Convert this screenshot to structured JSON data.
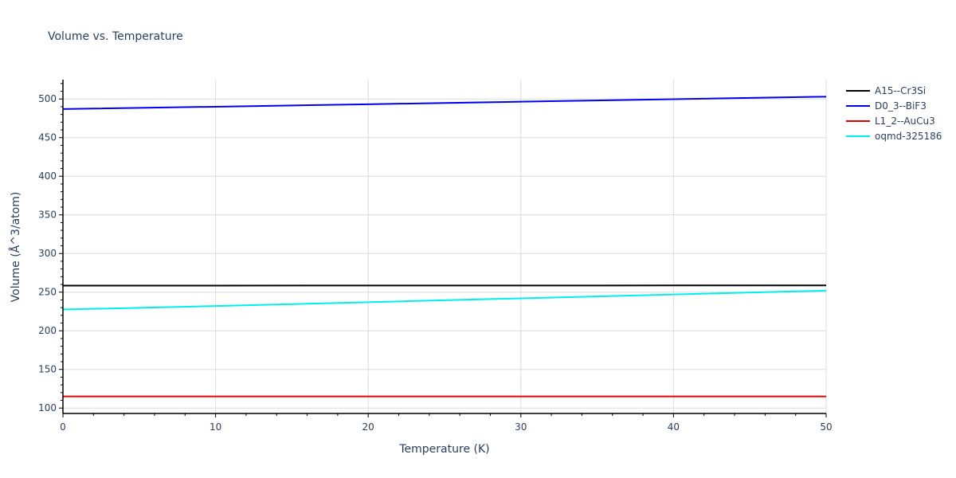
{
  "chart_data": {
    "type": "line",
    "title": "Volume vs. Temperature",
    "xlabel": "Temperature (K)",
    "ylabel": "Volume (Å^3/atom)",
    "xlim": [
      0,
      50
    ],
    "ylim": [
      93,
      525
    ],
    "x_ticks": [
      0,
      10,
      20,
      30,
      40,
      50
    ],
    "y_ticks": [
      100,
      150,
      200,
      250,
      300,
      350,
      400,
      450,
      500
    ],
    "grid": true,
    "legend_position": "right-top",
    "x": [
      0,
      10,
      20,
      30,
      40,
      50
    ],
    "series": [
      {
        "name": "A15--Cr3Si",
        "color": "#000000",
        "values": [
          258.5,
          258.5,
          258.6,
          258.6,
          258.7,
          258.8
        ]
      },
      {
        "name": "D0_3--BiF3",
        "color": "#0000ee",
        "values": [
          487.0,
          490.0,
          493.2,
          496.5,
          499.8,
          503.0
        ]
      },
      {
        "name": "L1_2--AuCu3",
        "color": "#ee0000",
        "values": [
          115.0,
          115.0,
          115.0,
          115.0,
          115.0,
          115.0
        ]
      },
      {
        "name": "oqmd-325186",
        "color": "#00eeee",
        "values": [
          227.5,
          232.0,
          237.0,
          242.0,
          247.0,
          252.0
        ]
      }
    ]
  },
  "labels": {
    "title": "Volume vs. Temperature",
    "xlabel": "Temperature (K)",
    "ylabel": "Volume (Å^3/atom)",
    "x_ticks": [
      "0",
      "10",
      "20",
      "30",
      "40",
      "50"
    ],
    "y_ticks": [
      "100",
      "150",
      "200",
      "250",
      "300",
      "350",
      "400",
      "450",
      "500"
    ],
    "legend": [
      "A15--Cr3Si",
      "D0_3--BiF3",
      "L1_2--AuCu3",
      "oqmd-325186"
    ]
  }
}
